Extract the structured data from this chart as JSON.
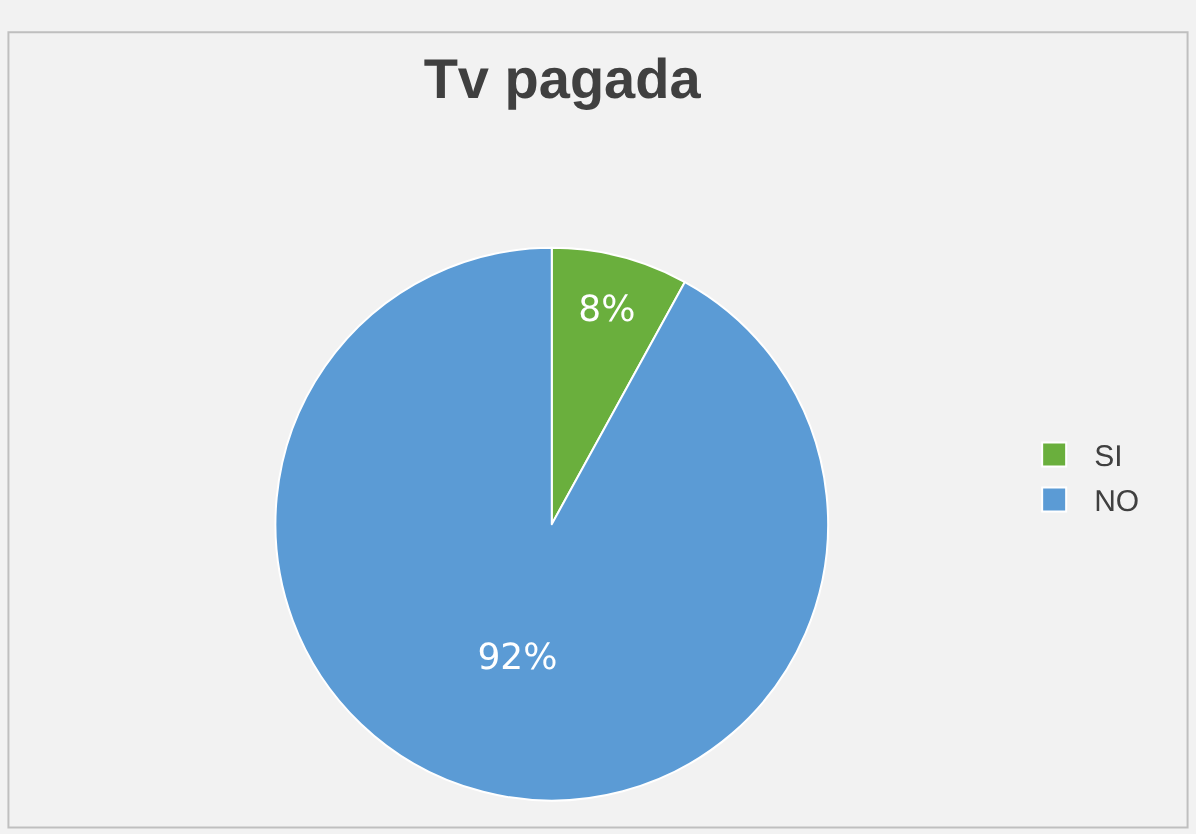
{
  "chart_data": {
    "type": "pie",
    "title": "Tv pagada",
    "categories": [
      "SI",
      "NO"
    ],
    "values": [
      8,
      92
    ],
    "colors": [
      "#6aaf3d",
      "#5b9bd5"
    ],
    "value_labels": [
      "8%",
      "92%"
    ],
    "legend": "right"
  }
}
